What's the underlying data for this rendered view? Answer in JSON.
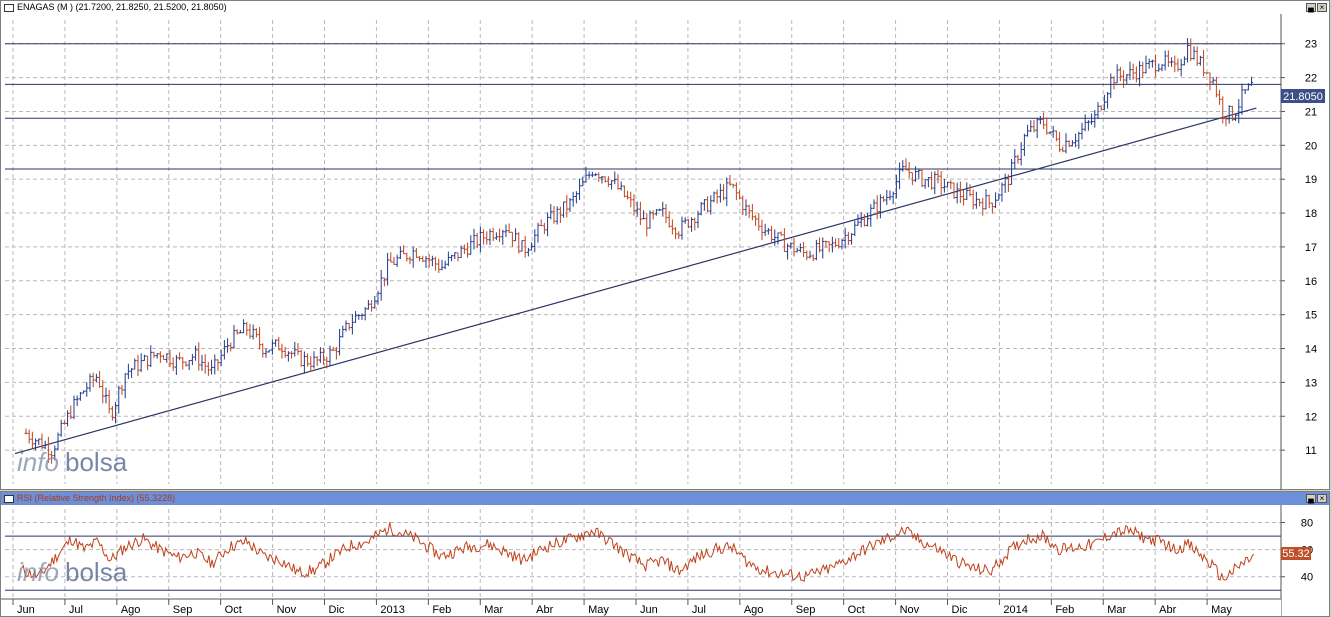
{
  "price_panel": {
    "title": "ENAGAS (M ) (21.7200, 21.8250, 21.5200, 21.8050)",
    "last_price_label": "21.8050",
    "watermark_info": "info",
    "watermark_bolsa": "bolsa"
  },
  "rsi_panel": {
    "title": "RSI (Relative Strength Index) (55.3228)",
    "last_value_label": "55.32",
    "watermark_info": "info",
    "watermark_bolsa": "bolsa"
  },
  "buttons": {
    "minimize": "▄",
    "close": "×"
  },
  "chart_data": [
    {
      "type": "ohlc",
      "title": "ENAGAS (M )",
      "last": {
        "open": 21.72,
        "high": 21.825,
        "low": 21.52,
        "close": 21.805
      },
      "ylim": [
        10,
        23.7
      ],
      "y_ticks": [
        11,
        12,
        13,
        14,
        15,
        16,
        17,
        18,
        19,
        20,
        21,
        22,
        23
      ],
      "grid": true,
      "x_labels": [
        "Jun",
        "Jul",
        "Ago",
        "Sep",
        "Oct",
        "Nov",
        "Dic",
        "2013",
        "Feb",
        "Mar",
        "Abr",
        "May",
        "Jun",
        "Jul",
        "Ago",
        "Sep",
        "Oct",
        "Nov",
        "Dic",
        "2014",
        "Feb",
        "Mar",
        "Abr",
        "May"
      ],
      "horizontal_lines": [
        23.0,
        21.8,
        20.8,
        19.3
      ],
      "trendline": [
        {
          "x": "Jun 2012",
          "y": 10.9
        },
        {
          "x": "May 2014",
          "y": 21.1
        }
      ],
      "price_path": [
        [
          "Jun 2012",
          11.5
        ],
        [
          "Jun 2012",
          11.0
        ],
        [
          "Jul 2012",
          12.2
        ],
        [
          "Jul 2012",
          12.8
        ],
        [
          "Jul 2012",
          13.2
        ],
        [
          "Jul 2012",
          12.0
        ],
        [
          "Ago 2012",
          13.3
        ],
        [
          "Ago 2012",
          13.6
        ],
        [
          "Ago 2012",
          13.9
        ],
        [
          "Sep 2012",
          13.6
        ],
        [
          "Sep 2012",
          13.8
        ],
        [
          "Sep 2012",
          13.3
        ],
        [
          "Oct 2012",
          14.2
        ],
        [
          "Oct 2012",
          14.6
        ],
        [
          "Oct 2012",
          14.0
        ],
        [
          "Nov 2012",
          14.1
        ],
        [
          "Nov 2012",
          13.7
        ],
        [
          "Nov 2012",
          13.6
        ],
        [
          "Dic 2012",
          13.9
        ],
        [
          "Dic 2012",
          14.8
        ],
        [
          "Dic 2012",
          15.2
        ],
        [
          "2013",
          16.5
        ],
        [
          "2013",
          16.9
        ],
        [
          "Feb 2013",
          16.4
        ],
        [
          "Feb 2013",
          17.0
        ],
        [
          "Mar 2013",
          17.4
        ],
        [
          "Mar 2013",
          17.6
        ],
        [
          "Mar 2013",
          16.9
        ],
        [
          "Abr 2013",
          17.7
        ],
        [
          "Abr 2013",
          18.3
        ],
        [
          "May 2013",
          19.3
        ],
        [
          "May 2013",
          19.0
        ],
        [
          "May 2013",
          18.4
        ],
        [
          "Jun 2013",
          17.7
        ],
        [
          "Jun 2013",
          18.0
        ],
        [
          "Jun 2013",
          17.5
        ],
        [
          "Jul 2013",
          18.0
        ],
        [
          "Jul 2013",
          18.4
        ],
        [
          "Jul 2013",
          18.8
        ],
        [
          "Ago 2013",
          18.0
        ],
        [
          "Ago 2013",
          17.5
        ],
        [
          "Ago 2013",
          17.1
        ],
        [
          "Sep 2013",
          16.8
        ],
        [
          "Sep 2013",
          17.0
        ],
        [
          "Oct 2013",
          17.5
        ],
        [
          "Oct 2013",
          18.0
        ],
        [
          "Oct 2013",
          18.5
        ],
        [
          "Nov 2013",
          19.3
        ],
        [
          "Nov 2013",
          19.0
        ],
        [
          "Nov 2013",
          18.9
        ],
        [
          "Dic 2013",
          18.6
        ],
        [
          "Dic 2013",
          18.4
        ],
        [
          "Dic 2013",
          18.3
        ],
        [
          "2014",
          19.0
        ],
        [
          "2014",
          20.3
        ],
        [
          "2014",
          20.7
        ],
        [
          "Feb 2014",
          20.0
        ],
        [
          "Feb 2014",
          20.3
        ],
        [
          "Feb 2014",
          20.8
        ],
        [
          "Mar 2014",
          22.0
        ],
        [
          "Mar 2014",
          22.1
        ],
        [
          "Mar 2014",
          22.3
        ],
        [
          "Abr 2014",
          22.5
        ],
        [
          "Abr 2014",
          22.2
        ],
        [
          "Abr 2014",
          22.9
        ],
        [
          "Abr 2014",
          22.4
        ],
        [
          "May 2014",
          22.0
        ],
        [
          "May 2014",
          21.0
        ],
        [
          "May 2014",
          20.9
        ],
        [
          "May 2014",
          21.5
        ],
        [
          "May 2014",
          21.8
        ]
      ]
    },
    {
      "type": "line",
      "title": "RSI (Relative Strength Index)",
      "last": 55.3228,
      "ylim": [
        25,
        90
      ],
      "y_ticks": [
        40,
        60,
        80
      ],
      "reference_lines": [
        70,
        30
      ],
      "grid": true,
      "rsi_path": [
        [
          "Jun 2012",
          45
        ],
        [
          "Jun 2012",
          40
        ],
        [
          "Jun 2012",
          55
        ],
        [
          "Jul 2012",
          68
        ],
        [
          "Jul 2012",
          60
        ],
        [
          "Jul 2012",
          66
        ],
        [
          "Jul 2012",
          52
        ],
        [
          "Ago 2012",
          62
        ],
        [
          "Ago 2012",
          68
        ],
        [
          "Ago 2012",
          60
        ],
        [
          "Sep 2012",
          54
        ],
        [
          "Sep 2012",
          58
        ],
        [
          "Sep 2012",
          50
        ],
        [
          "Oct 2012",
          62
        ],
        [
          "Oct 2012",
          66
        ],
        [
          "Oct 2012",
          55
        ],
        [
          "Nov 2012",
          52
        ],
        [
          "Nov 2012",
          43
        ],
        [
          "Nov 2012",
          45
        ],
        [
          "Dic 2012",
          55
        ],
        [
          "Dic 2012",
          63
        ],
        [
          "Dic 2012",
          66
        ],
        [
          "2013",
          76
        ],
        [
          "2013",
          68
        ],
        [
          "Feb 2013",
          55
        ],
        [
          "Feb 2013",
          62
        ],
        [
          "Mar 2013",
          64
        ],
        [
          "Mar 2013",
          58
        ],
        [
          "Mar 2013",
          52
        ],
        [
          "Abr 2013",
          62
        ],
        [
          "Abr 2013",
          68
        ],
        [
          "May 2013",
          74
        ],
        [
          "May 2013",
          66
        ],
        [
          "May 2013",
          56
        ],
        [
          "Jun 2013",
          48
        ],
        [
          "Jun 2013",
          52
        ],
        [
          "Jun 2013",
          44
        ],
        [
          "Jul 2013",
          54
        ],
        [
          "Jul 2013",
          60
        ],
        [
          "Jul 2013",
          62
        ],
        [
          "Ago 2013",
          50
        ],
        [
          "Ago 2013",
          44
        ],
        [
          "Ago 2013",
          42
        ],
        [
          "Sep 2013",
          40
        ],
        [
          "Sep 2013",
          46
        ],
        [
          "Oct 2013",
          55
        ],
        [
          "Oct 2013",
          62
        ],
        [
          "Oct 2013",
          68
        ],
        [
          "Nov 2013",
          74
        ],
        [
          "Nov 2013",
          66
        ],
        [
          "Nov 2013",
          60
        ],
        [
          "Dic 2013",
          52
        ],
        [
          "Dic 2013",
          46
        ],
        [
          "Dic 2013",
          44
        ],
        [
          "2014",
          58
        ],
        [
          "2014",
          68
        ],
        [
          "2014",
          70
        ],
        [
          "Feb 2014",
          60
        ],
        [
          "Feb 2014",
          62
        ],
        [
          "Feb 2014",
          64
        ],
        [
          "Mar 2014",
          72
        ],
        [
          "Mar 2014",
          74
        ],
        [
          "Mar 2014",
          68
        ],
        [
          "Abr 2014",
          66
        ],
        [
          "Abr 2014",
          60
        ],
        [
          "Abr 2014",
          64
        ],
        [
          "Abr 2014",
          56
        ],
        [
          "May 2014",
          48
        ],
        [
          "May 2014",
          38
        ],
        [
          "May 2014",
          44
        ],
        [
          "May 2014",
          50
        ],
        [
          "May 2014",
          55.32
        ]
      ]
    }
  ]
}
